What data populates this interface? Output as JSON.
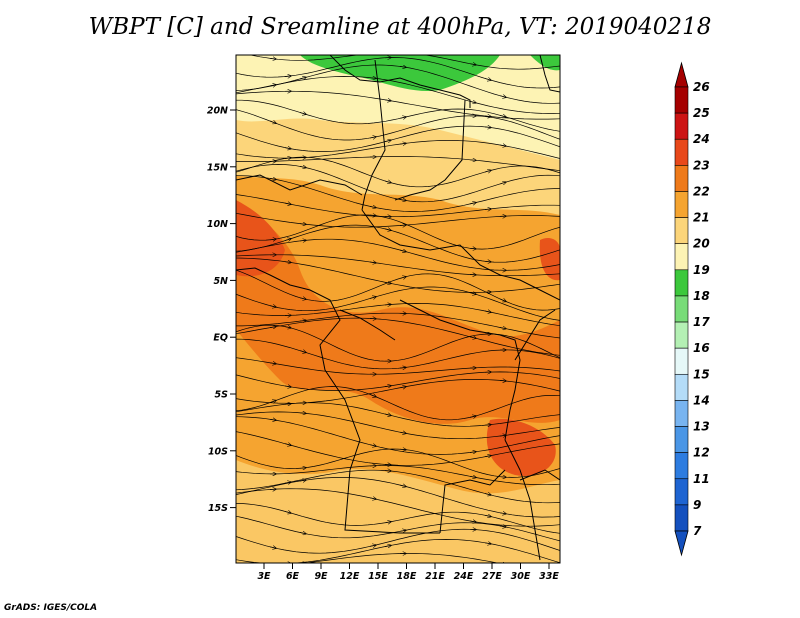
{
  "title": "WBPT [C] and Sreamline at 400hPa, VT: 2019040218",
  "credit": "GrADS: IGES/COLA",
  "map": {
    "lat_labels": [
      "20N",
      "15N",
      "10N",
      "5N",
      "EQ",
      "5S",
      "10S",
      "15S"
    ],
    "lon_labels": [
      "3E",
      "6E",
      "9E",
      "12E",
      "15E",
      "18E",
      "21E",
      "24E",
      "27E",
      "30E",
      "33E"
    ],
    "colors": {
      "green": "#3cc83c",
      "pale": "#fdf3b4",
      "light_orange": "#fcd57a",
      "orange": "#f5a430",
      "deep_orange": "#ef7a1a",
      "red_orange": "#e8541a"
    }
  },
  "colorbar": {
    "levels": [
      "26",
      "25",
      "24",
      "23",
      "22",
      "21",
      "20",
      "19",
      "18",
      "17",
      "16",
      "15",
      "14",
      "13",
      "12",
      "11",
      "9",
      "7"
    ],
    "colors": [
      "#a50000",
      "#cd1414",
      "#e8481a",
      "#ef7a1a",
      "#f5a430",
      "#fcd57a",
      "#fdf3b4",
      "#3cc83c",
      "#78dc78",
      "#b4f0b4",
      "#e6f8f8",
      "#b4dcf8",
      "#78b4f0",
      "#4a96e6",
      "#2d7ce0",
      "#1e64d2",
      "#1450be"
    ]
  }
}
